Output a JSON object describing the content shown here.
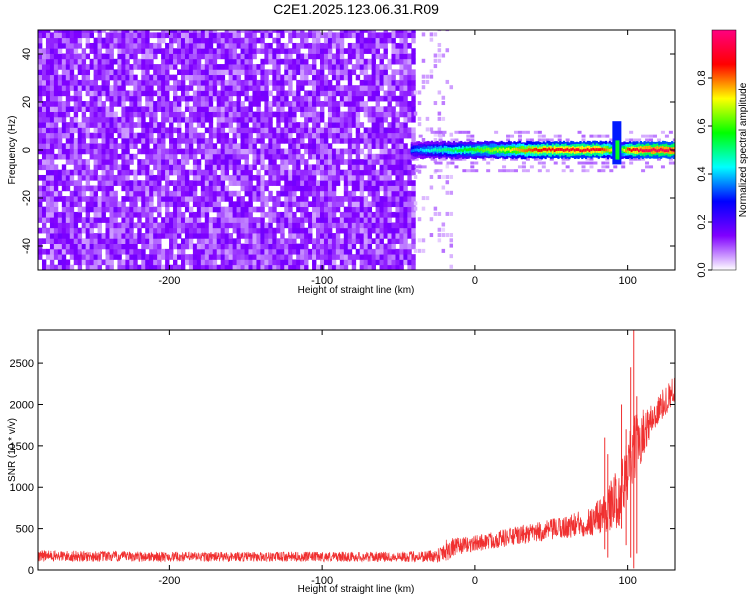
{
  "title": "C2E1.2025.123.06.31.R09",
  "chart_data": [
    {
      "type": "heatmap",
      "xlabel": "Height of straight line (km)",
      "ylabel": "Frequency (Hz)",
      "xlim": [
        -286,
        131
      ],
      "ylim": [
        -50,
        50
      ],
      "x_ticks": [
        -200,
        -100,
        0,
        100
      ],
      "y_ticks": [
        -40,
        -20,
        0,
        20,
        40
      ],
      "colorbar": {
        "label": "Normalized spectral amplitude",
        "range": [
          0,
          1
        ],
        "ticks": [
          "0.0",
          "0.2",
          "0.4",
          "0.6",
          "0.8"
        ],
        "colors": [
          "#ffffff",
          "#8000ff",
          "#0000ff",
          "#00ffff",
          "#00ff00",
          "#ffff00",
          "#ff0000",
          "#ff0080"
        ]
      },
      "noise_region": {
        "x_range": [
          -286,
          -40
        ],
        "y_range": [
          -50,
          50
        ],
        "level": 0.15
      },
      "sparse_region": {
        "x_range": [
          -40,
          -15
        ],
        "level": 0.05
      },
      "carrier": {
        "freq_hz": 0,
        "x": [
          -42,
          -30,
          -20,
          -10,
          0,
          20,
          40,
          60,
          80,
          90,
          95,
          100,
          110,
          131
        ],
        "amplitude": [
          0.35,
          0.45,
          0.5,
          0.55,
          0.6,
          0.7,
          0.85,
          0.9,
          0.9,
          0.7,
          0.6,
          0.85,
          0.95,
          0.95
        ]
      },
      "burst": {
        "x": 93,
        "freq_span": [
          -6,
          12
        ]
      }
    },
    {
      "type": "line",
      "xlabel": "Height of straight line (km)",
      "ylabel": "SNR (10 * v/v)",
      "xlim": [
        -286,
        131
      ],
      "ylim": [
        0,
        2900
      ],
      "x_ticks": [
        -200,
        -100,
        0,
        100
      ],
      "y_ticks": [
        0,
        500,
        1000,
        1500,
        2000,
        2500
      ],
      "color": "#f03030",
      "envelope": {
        "x": [
          -286,
          -250,
          -200,
          -150,
          -100,
          -50,
          -25,
          -20,
          -10,
          0,
          20,
          40,
          60,
          75,
          85,
          95,
          105,
          115,
          125,
          131
        ],
        "mean": [
          170,
          165,
          160,
          160,
          160,
          160,
          170,
          240,
          290,
          320,
          390,
          450,
          520,
          580,
          700,
          900,
          1500,
          1800,
          2050,
          2200
        ],
        "spread": [
          70,
          65,
          60,
          60,
          60,
          60,
          80,
          150,
          100,
          100,
          110,
          120,
          140,
          180,
          250,
          380,
          400,
          200,
          180,
          160
        ]
      },
      "spikes": [
        {
          "x": 85,
          "low": 250,
          "high": 1600
        },
        {
          "x": 87,
          "low": 150,
          "high": 1400
        },
        {
          "x": 96,
          "low": 500,
          "high": 2000
        },
        {
          "x": 99,
          "low": 300,
          "high": 1700
        },
        {
          "x": 102,
          "low": 150,
          "high": 2450
        },
        {
          "x": 104,
          "low": 20,
          "high": 2900
        },
        {
          "x": 106,
          "low": 200,
          "high": 2100
        }
      ]
    }
  ]
}
